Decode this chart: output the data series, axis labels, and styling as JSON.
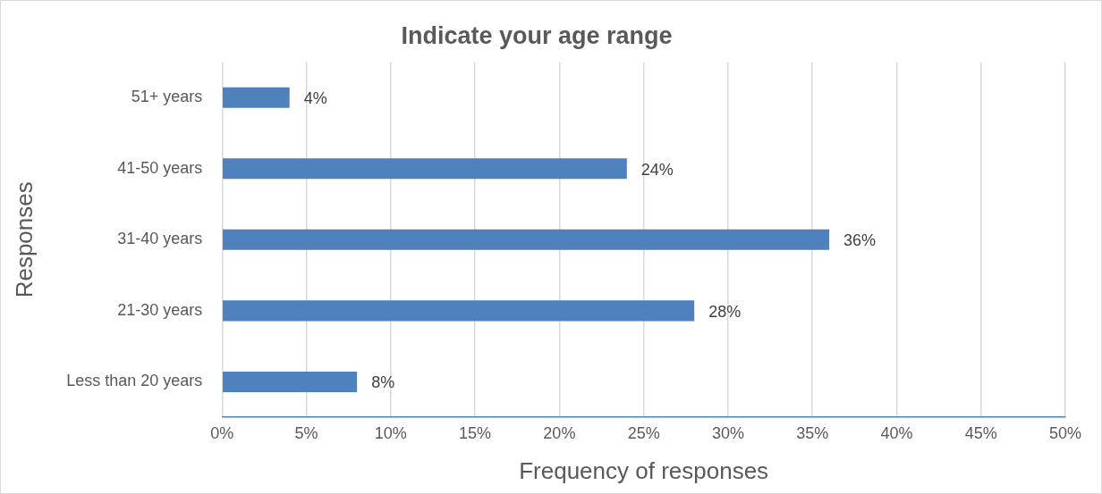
{
  "chart_data": {
    "type": "bar",
    "orientation": "horizontal",
    "title": "Indicate your age range",
    "xlabel": "Frequency of responses",
    "ylabel": "Responses",
    "categories": [
      "51+ years",
      "41-50 years",
      "31-40 years",
      "21-30 years",
      "Less than 20 years"
    ],
    "values": [
      4,
      24,
      36,
      28,
      8
    ],
    "value_labels": [
      "4%",
      "24%",
      "36%",
      "28%",
      "8%"
    ],
    "color": "#4f81bd",
    "xlim": [
      0,
      50
    ],
    "xticks": [
      {
        "value": 0,
        "label": "0%"
      },
      {
        "value": 5,
        "label": "5%"
      },
      {
        "value": 10,
        "label": "10%"
      },
      {
        "value": 15,
        "label": "15%"
      },
      {
        "value": 20,
        "label": "20%"
      },
      {
        "value": 25,
        "label": "25%"
      },
      {
        "value": 30,
        "label": "30%"
      },
      {
        "value": 35,
        "label": "35%"
      },
      {
        "value": 40,
        "label": "40%"
      },
      {
        "value": 45,
        "label": "45%"
      },
      {
        "value": 50,
        "label": "50%"
      }
    ],
    "grid": "x"
  }
}
